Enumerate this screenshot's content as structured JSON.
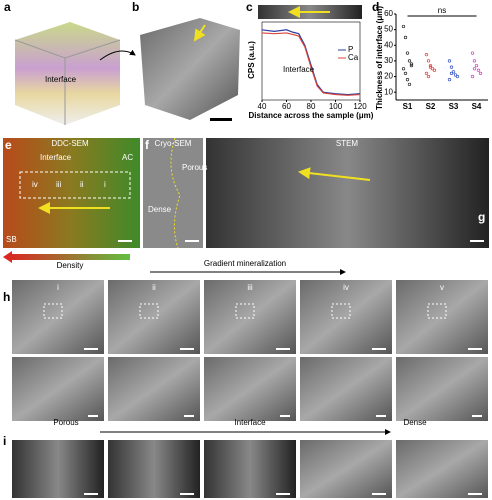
{
  "panel_labels": [
    "a",
    "b",
    "c",
    "d",
    "e",
    "f",
    "g",
    "h",
    "i"
  ],
  "a": {
    "label": "Interface"
  },
  "c": {
    "type": "line",
    "ylabel": "CPS (a.u.)",
    "xlabel": "Distance across the sample (μm)",
    "annotation": "Interface",
    "xlim": [
      40,
      120
    ],
    "xticks": [
      40,
      60,
      80,
      100,
      120
    ],
    "ylim": [
      0,
      1
    ],
    "x": [
      40,
      50,
      60,
      65,
      70,
      75,
      80,
      85,
      90,
      100,
      110,
      120
    ],
    "series": [
      {
        "name": "P",
        "color": "#2b3f9e",
        "values": [
          0.9,
          0.88,
          0.9,
          0.87,
          0.85,
          0.7,
          0.45,
          0.2,
          0.1,
          0.08,
          0.07,
          0.08
        ]
      },
      {
        "name": "Ca",
        "color": "#d9463b",
        "values": [
          0.86,
          0.85,
          0.86,
          0.84,
          0.82,
          0.68,
          0.42,
          0.18,
          0.09,
          0.07,
          0.06,
          0.07
        ]
      }
    ]
  },
  "d": {
    "type": "scatter",
    "ylabel": "Thickness of interface (μm)",
    "annotation": "ns",
    "categories": [
      "S1",
      "S2",
      "S3",
      "S4"
    ],
    "ylim": [
      5,
      60
    ],
    "yticks": [
      10,
      20,
      30,
      40,
      50,
      60
    ],
    "colors": [
      "#222222",
      "#e0403a",
      "#3050c0",
      "#d040c0"
    ],
    "values": [
      [
        52,
        45,
        35,
        30,
        28,
        25,
        22,
        18,
        15,
        27
      ],
      [
        34,
        30,
        27,
        25,
        24,
        22,
        20,
        26
      ],
      [
        30,
        26,
        23,
        21,
        20,
        18,
        22
      ],
      [
        35,
        30,
        27,
        24,
        22,
        20,
        25
      ]
    ]
  },
  "e": {
    "title": "DDC-SEM",
    "labels": [
      "Interface",
      "AC",
      "SB"
    ],
    "zones": [
      "iv",
      "iii",
      "ii",
      "i"
    ]
  },
  "f": {
    "title": "Cryo-SEM",
    "labels": [
      "Porous",
      "Dense"
    ]
  },
  "g": {
    "title": "STEM"
  },
  "density": "Density",
  "h": {
    "title": "Gradient mineralization",
    "columns": [
      "i",
      "ii",
      "iii",
      "iv",
      "v"
    ]
  },
  "i": {
    "labels": [
      "Porous",
      "Interface",
      "Dense"
    ]
  }
}
